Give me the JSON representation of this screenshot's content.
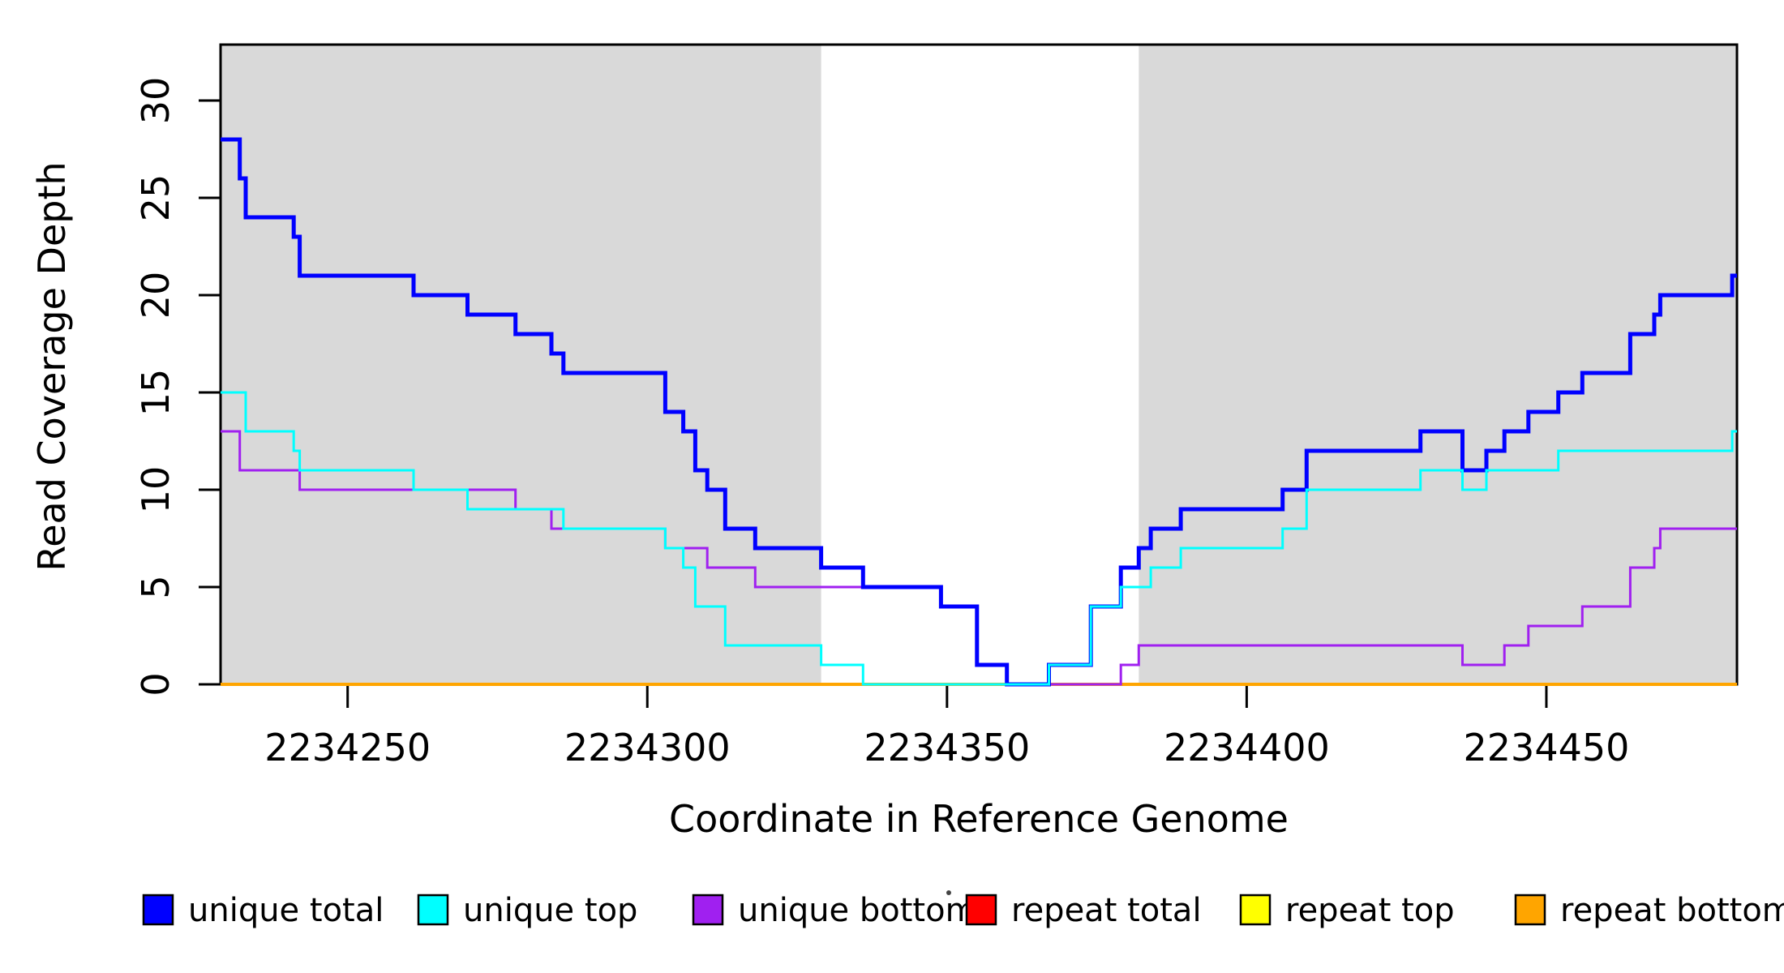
{
  "chart_data": {
    "type": "line",
    "subtype": "step",
    "title": "",
    "xlabel": "Coordinate in Reference Genome",
    "ylabel": "Read Coverage Depth",
    "xlim": [
      2234228.8,
      2234481.8
    ],
    "ylim": [
      0,
      32.875
    ],
    "xticks": [
      2234250,
      2234300,
      2234350,
      2234400,
      2234450
    ],
    "yticks": [
      0,
      5,
      10,
      15,
      20,
      25,
      30
    ],
    "grid": false,
    "legend_position": "bottom",
    "shaded_regions": {
      "color": "#d9d9d9",
      "x_ranges": [
        [
          2234228.8,
          2234329
        ],
        [
          2234382,
          2234481.8
        ]
      ]
    },
    "series": [
      {
        "name": "unique total",
        "color": "#0000ff",
        "line_width": 5,
        "steps": [
          [
            2234228.8,
            28
          ],
          [
            2234232,
            26
          ],
          [
            2234233,
            24
          ],
          [
            2234241,
            23
          ],
          [
            2234242,
            21
          ],
          [
            2234261,
            20
          ],
          [
            2234270,
            19
          ],
          [
            2234278,
            18
          ],
          [
            2234284,
            17
          ],
          [
            2234286,
            16
          ],
          [
            2234303,
            14
          ],
          [
            2234306,
            13
          ],
          [
            2234308,
            11
          ],
          [
            2234310,
            10
          ],
          [
            2234313,
            8
          ],
          [
            2234318,
            7
          ],
          [
            2234329,
            6
          ],
          [
            2234336,
            5
          ],
          [
            2234349,
            4
          ],
          [
            2234355,
            1
          ],
          [
            2234360,
            0
          ],
          [
            2234367,
            1
          ],
          [
            2234374,
            4
          ],
          [
            2234379,
            6
          ],
          [
            2234382,
            7
          ],
          [
            2234384,
            8
          ],
          [
            2234389,
            9
          ],
          [
            2234406,
            10
          ],
          [
            2234410,
            12
          ],
          [
            2234429,
            13
          ],
          [
            2234436,
            11
          ],
          [
            2234440,
            12
          ],
          [
            2234443,
            13
          ],
          [
            2234447,
            14
          ],
          [
            2234452,
            15
          ],
          [
            2234456,
            16
          ],
          [
            2234464,
            18
          ],
          [
            2234468,
            19
          ],
          [
            2234469,
            20
          ],
          [
            2234481,
            21
          ]
        ]
      },
      {
        "name": "unique top",
        "color": "#00ffff",
        "line_width": 3,
        "steps": [
          [
            2234228.8,
            15
          ],
          [
            2234233,
            13
          ],
          [
            2234241,
            12
          ],
          [
            2234242,
            11
          ],
          [
            2234261,
            10
          ],
          [
            2234270,
            9
          ],
          [
            2234286,
            8
          ],
          [
            2234303,
            7
          ],
          [
            2234306,
            6
          ],
          [
            2234308,
            4
          ],
          [
            2234313,
            2
          ],
          [
            2234329,
            1
          ],
          [
            2234336,
            0
          ],
          [
            2234367,
            1
          ],
          [
            2234374,
            4
          ],
          [
            2234379,
            5
          ],
          [
            2234384,
            6
          ],
          [
            2234389,
            7
          ],
          [
            2234406,
            8
          ],
          [
            2234410,
            10
          ],
          [
            2234429,
            11
          ],
          [
            2234436,
            10
          ],
          [
            2234440,
            11
          ],
          [
            2234452,
            12
          ],
          [
            2234481,
            13
          ]
        ]
      },
      {
        "name": "unique bottom",
        "color": "#a020f0",
        "line_width": 3,
        "steps": [
          [
            2234228.8,
            13
          ],
          [
            2234232,
            11
          ],
          [
            2234242,
            10
          ],
          [
            2234278,
            9
          ],
          [
            2234284,
            8
          ],
          [
            2234303,
            7
          ],
          [
            2234310,
            6
          ],
          [
            2234318,
            5
          ],
          [
            2234349,
            4
          ],
          [
            2234355,
            1
          ],
          [
            2234360,
            0
          ],
          [
            2234379,
            1
          ],
          [
            2234382,
            2
          ],
          [
            2234436,
            1
          ],
          [
            2234443,
            2
          ],
          [
            2234447,
            3
          ],
          [
            2234456,
            4
          ],
          [
            2234464,
            6
          ],
          [
            2234468,
            7
          ],
          [
            2234469,
            8
          ]
        ]
      },
      {
        "name": "repeat total",
        "color": "#ff0000",
        "line_width": 4,
        "steps": [
          [
            2234228.8,
            0
          ]
        ]
      },
      {
        "name": "repeat top",
        "color": "#ffff00",
        "line_width": 4,
        "steps": [
          [
            2234228.8,
            0
          ]
        ]
      },
      {
        "name": "repeat bottom",
        "color": "#ffa500",
        "line_width": 4,
        "steps": [
          [
            2234228.8,
            0
          ]
        ]
      }
    ],
    "draw_order": [
      "repeat total",
      "repeat top",
      "repeat bottom",
      "unique bottom",
      "unique total",
      "unique top"
    ],
    "legend": [
      {
        "label": "unique total",
        "color": "#0000ff"
      },
      {
        "label": "unique top",
        "color": "#00ffff"
      },
      {
        "label": "unique bottom",
        "color": "#a020f0"
      },
      {
        "label": "repeat total",
        "color": "#ff0000"
      },
      {
        "label": "repeat top",
        "color": "#ffff00"
      },
      {
        "label": "repeat bottom",
        "color": "#ffa500"
      }
    ]
  }
}
